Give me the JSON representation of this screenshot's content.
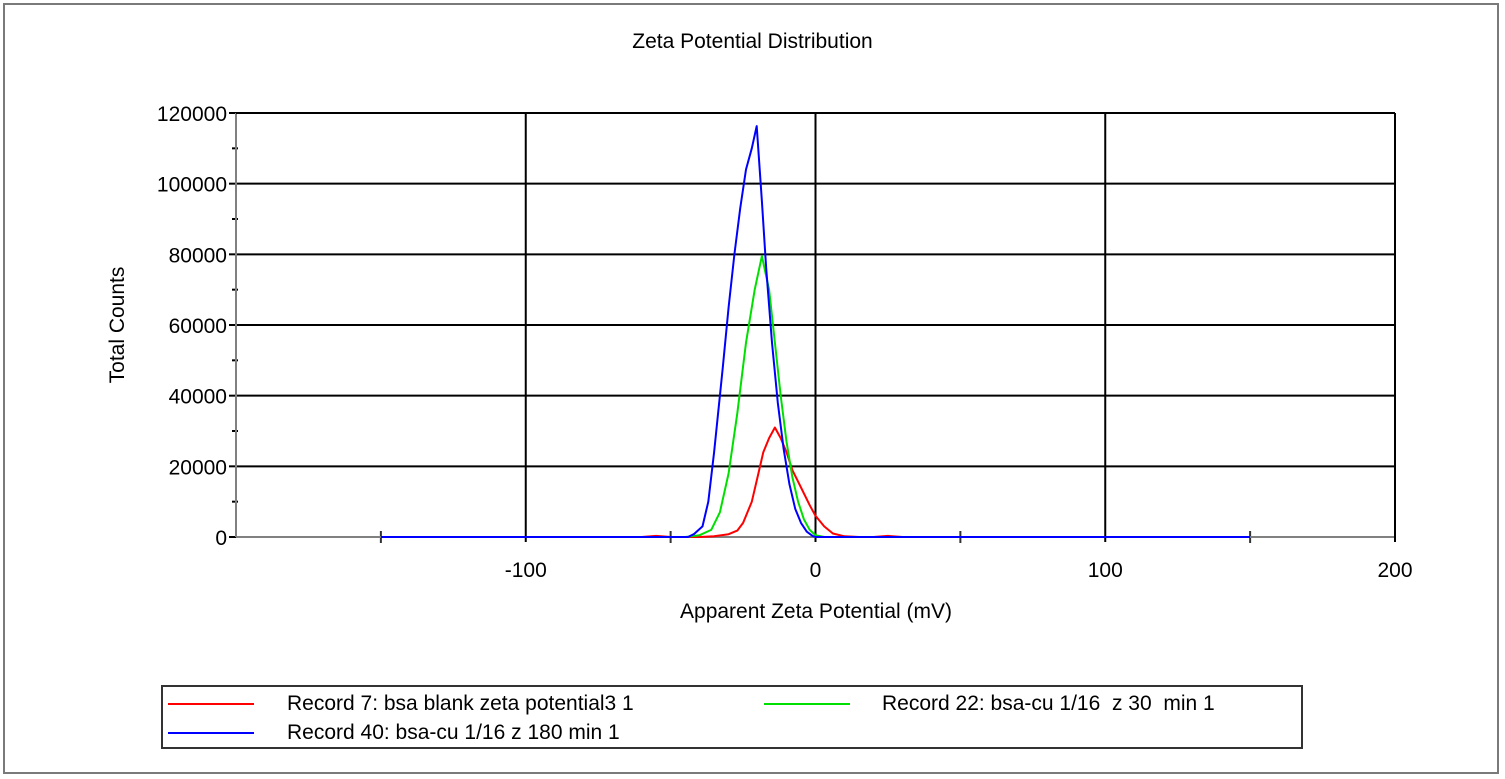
{
  "chart_data": {
    "type": "line",
    "title": "Zeta Potential Distribution",
    "xlabel": "Apparent Zeta Potential (mV)",
    "ylabel": "Total Counts",
    "xlim": [
      -200,
      200
    ],
    "ylim": [
      0,
      120000
    ],
    "x_ticks": [
      -100,
      0,
      100,
      200
    ],
    "y_ticks": [
      0,
      20000,
      40000,
      60000,
      80000,
      100000,
      120000
    ],
    "grid": true,
    "legend_position": "bottom",
    "series": [
      {
        "name": "Record 7: bsa blank zeta potential3 1",
        "color": "#ff0000",
        "x": [
          -150,
          -60,
          -55,
          -50,
          -40,
          -35,
          -30,
          -27,
          -25,
          -22,
          -20,
          -18,
          -16,
          -14,
          -12,
          -10,
          -8,
          -5,
          -2,
          0,
          3,
          6,
          10,
          15,
          20,
          25,
          30,
          35,
          40,
          150
        ],
        "y": [
          0,
          0,
          300,
          0,
          0,
          200,
          800,
          1800,
          4000,
          10000,
          17000,
          24000,
          28000,
          31000,
          28000,
          24000,
          19000,
          14000,
          9000,
          6000,
          3000,
          1000,
          200,
          0,
          0,
          300,
          0,
          0,
          0,
          0
        ]
      },
      {
        "name": "Record 22: bsa-cu 1/16  z 30  min 1",
        "color": "#00e000",
        "x": [
          -150,
          -45,
          -40,
          -36,
          -33,
          -30,
          -27,
          -24,
          -21,
          -18.5,
          -16,
          -14,
          -12,
          -10,
          -8,
          -6,
          -4,
          -2,
          0,
          3,
          6,
          150
        ],
        "y": [
          0,
          0,
          500,
          2000,
          7000,
          18000,
          35000,
          55000,
          70000,
          79500,
          70000,
          55000,
          40000,
          27000,
          17000,
          10000,
          5000,
          2000,
          500,
          0,
          0,
          0
        ]
      },
      {
        "name": "Record 40: bsa-cu 1/16 z 180 min 1",
        "color": "#0000ff",
        "x": [
          -150,
          -44,
          -42,
          -39,
          -37,
          -35,
          -32,
          -30,
          -28,
          -26,
          -24,
          -22,
          -20.3,
          -18.5,
          -17,
          -15,
          -13,
          -11,
          -9,
          -7,
          -5,
          -3,
          -1,
          0,
          150
        ],
        "y": [
          0,
          0,
          800,
          3000,
          10000,
          24000,
          48000,
          65000,
          80000,
          93000,
          104000,
          110000,
          116300,
          95000,
          76000,
          55000,
          38000,
          25000,
          15000,
          8000,
          4000,
          1500,
          300,
          0,
          0
        ]
      }
    ]
  },
  "legend": {
    "items": [
      {
        "label": "Record 7: bsa blank zeta potential3 1",
        "color": "#ff0000"
      },
      {
        "label": "Record 22: bsa-cu 1/16  z 30  min 1",
        "color": "#00e000"
      },
      {
        "label": "Record 40: bsa-cu 1/16 z 180 min 1",
        "color": "#0000ff"
      }
    ]
  },
  "colors": {
    "grid": "#000000",
    "axis": "#808080",
    "frame": "#7a7a7a"
  }
}
